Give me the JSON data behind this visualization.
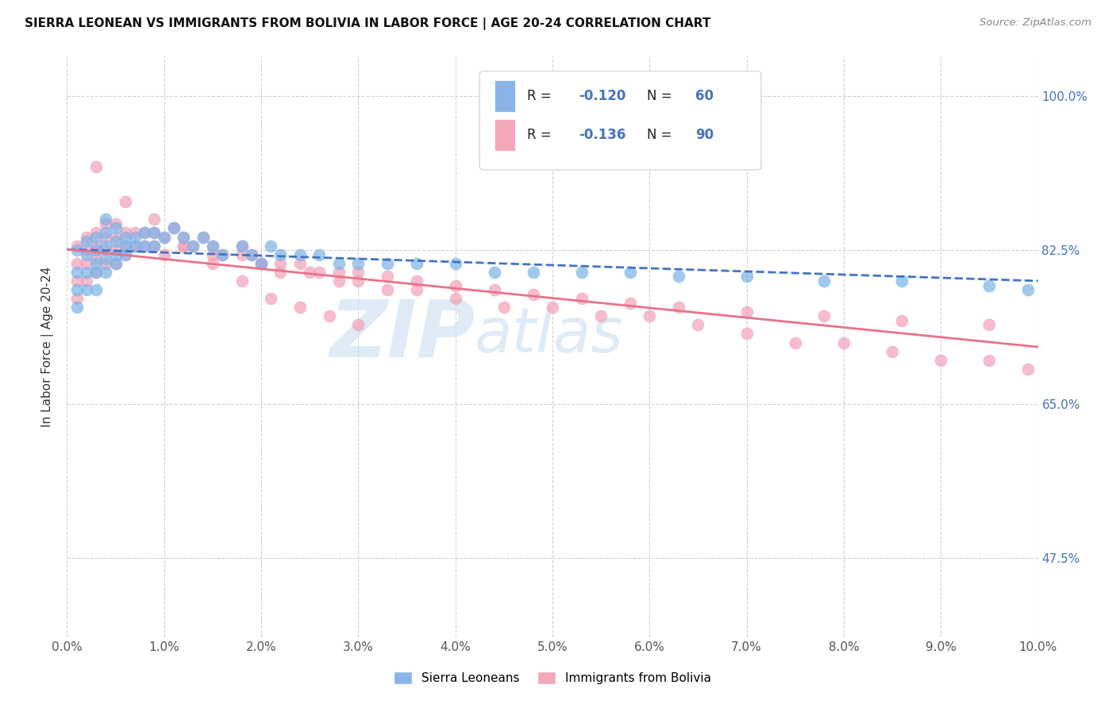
{
  "title": "SIERRA LEONEAN VS IMMIGRANTS FROM BOLIVIA IN LABOR FORCE | AGE 20-24 CORRELATION CHART",
  "source": "Source: ZipAtlas.com",
  "ylabel": "In Labor Force | Age 20-24",
  "yticks": [
    0.475,
    0.65,
    0.825,
    1.0
  ],
  "ytick_labels": [
    "47.5%",
    "65.0%",
    "82.5%",
    "100.0%"
  ],
  "xmin": 0.0,
  "xmax": 0.1,
  "ymin": 0.385,
  "ymax": 1.045,
  "watermark_zip": "ZIP",
  "watermark_atlas": "atlas",
  "sl_color": "#7ab3e8",
  "bo_color": "#f4a0b5",
  "trendline_sl_color": "#4472c4",
  "trendline_bo_color": "#e8728a",
  "background_color": "#ffffff",
  "grid_color": "#d0d0d0",
  "sierra_leonean_x": [
    0.001,
    0.001,
    0.001,
    0.001,
    0.002,
    0.002,
    0.002,
    0.002,
    0.003,
    0.003,
    0.003,
    0.003,
    0.003,
    0.004,
    0.004,
    0.004,
    0.004,
    0.004,
    0.005,
    0.005,
    0.005,
    0.005,
    0.006,
    0.006,
    0.006,
    0.007,
    0.007,
    0.008,
    0.008,
    0.009,
    0.009,
    0.01,
    0.011,
    0.012,
    0.013,
    0.014,
    0.015,
    0.016,
    0.018,
    0.019,
    0.02,
    0.021,
    0.022,
    0.024,
    0.026,
    0.028,
    0.03,
    0.033,
    0.036,
    0.04,
    0.044,
    0.048,
    0.053,
    0.058,
    0.063,
    0.07,
    0.078,
    0.086,
    0.095,
    0.099
  ],
  "sierra_leonean_y": [
    0.825,
    0.8,
    0.78,
    0.76,
    0.835,
    0.82,
    0.8,
    0.78,
    0.84,
    0.825,
    0.81,
    0.8,
    0.78,
    0.86,
    0.845,
    0.83,
    0.815,
    0.8,
    0.85,
    0.835,
    0.82,
    0.81,
    0.84,
    0.83,
    0.82,
    0.84,
    0.83,
    0.845,
    0.83,
    0.845,
    0.83,
    0.84,
    0.85,
    0.84,
    0.83,
    0.84,
    0.83,
    0.82,
    0.83,
    0.82,
    0.81,
    0.83,
    0.82,
    0.82,
    0.82,
    0.81,
    0.81,
    0.81,
    0.81,
    0.81,
    0.8,
    0.8,
    0.8,
    0.8,
    0.795,
    0.795,
    0.79,
    0.79,
    0.785,
    0.78
  ],
  "bolivia_x": [
    0.001,
    0.001,
    0.001,
    0.001,
    0.002,
    0.002,
    0.002,
    0.002,
    0.003,
    0.003,
    0.003,
    0.003,
    0.004,
    0.004,
    0.004,
    0.004,
    0.005,
    0.005,
    0.005,
    0.005,
    0.006,
    0.006,
    0.006,
    0.007,
    0.007,
    0.008,
    0.008,
    0.009,
    0.009,
    0.01,
    0.011,
    0.012,
    0.013,
    0.014,
    0.015,
    0.016,
    0.018,
    0.019,
    0.02,
    0.022,
    0.024,
    0.026,
    0.028,
    0.03,
    0.033,
    0.036,
    0.04,
    0.044,
    0.048,
    0.053,
    0.058,
    0.063,
    0.07,
    0.078,
    0.086,
    0.095,
    0.01,
    0.012,
    0.015,
    0.018,
    0.02,
    0.022,
    0.025,
    0.028,
    0.03,
    0.033,
    0.036,
    0.04,
    0.045,
    0.05,
    0.055,
    0.06,
    0.065,
    0.07,
    0.075,
    0.08,
    0.085,
    0.09,
    0.095,
    0.099,
    0.003,
    0.006,
    0.009,
    0.012,
    0.015,
    0.018,
    0.021,
    0.024,
    0.027,
    0.03
  ],
  "bolivia_y": [
    0.83,
    0.81,
    0.79,
    0.77,
    0.84,
    0.825,
    0.81,
    0.79,
    0.845,
    0.83,
    0.815,
    0.8,
    0.855,
    0.84,
    0.825,
    0.81,
    0.855,
    0.84,
    0.825,
    0.81,
    0.845,
    0.83,
    0.82,
    0.845,
    0.83,
    0.845,
    0.83,
    0.845,
    0.83,
    0.84,
    0.85,
    0.84,
    0.83,
    0.84,
    0.83,
    0.82,
    0.83,
    0.82,
    0.81,
    0.81,
    0.81,
    0.8,
    0.8,
    0.8,
    0.795,
    0.79,
    0.785,
    0.78,
    0.775,
    0.77,
    0.765,
    0.76,
    0.755,
    0.75,
    0.745,
    0.74,
    0.82,
    0.83,
    0.82,
    0.82,
    0.81,
    0.8,
    0.8,
    0.79,
    0.79,
    0.78,
    0.78,
    0.77,
    0.76,
    0.76,
    0.75,
    0.75,
    0.74,
    0.73,
    0.72,
    0.72,
    0.71,
    0.7,
    0.7,
    0.69,
    0.92,
    0.88,
    0.86,
    0.83,
    0.81,
    0.79,
    0.77,
    0.76,
    0.75,
    0.74
  ]
}
